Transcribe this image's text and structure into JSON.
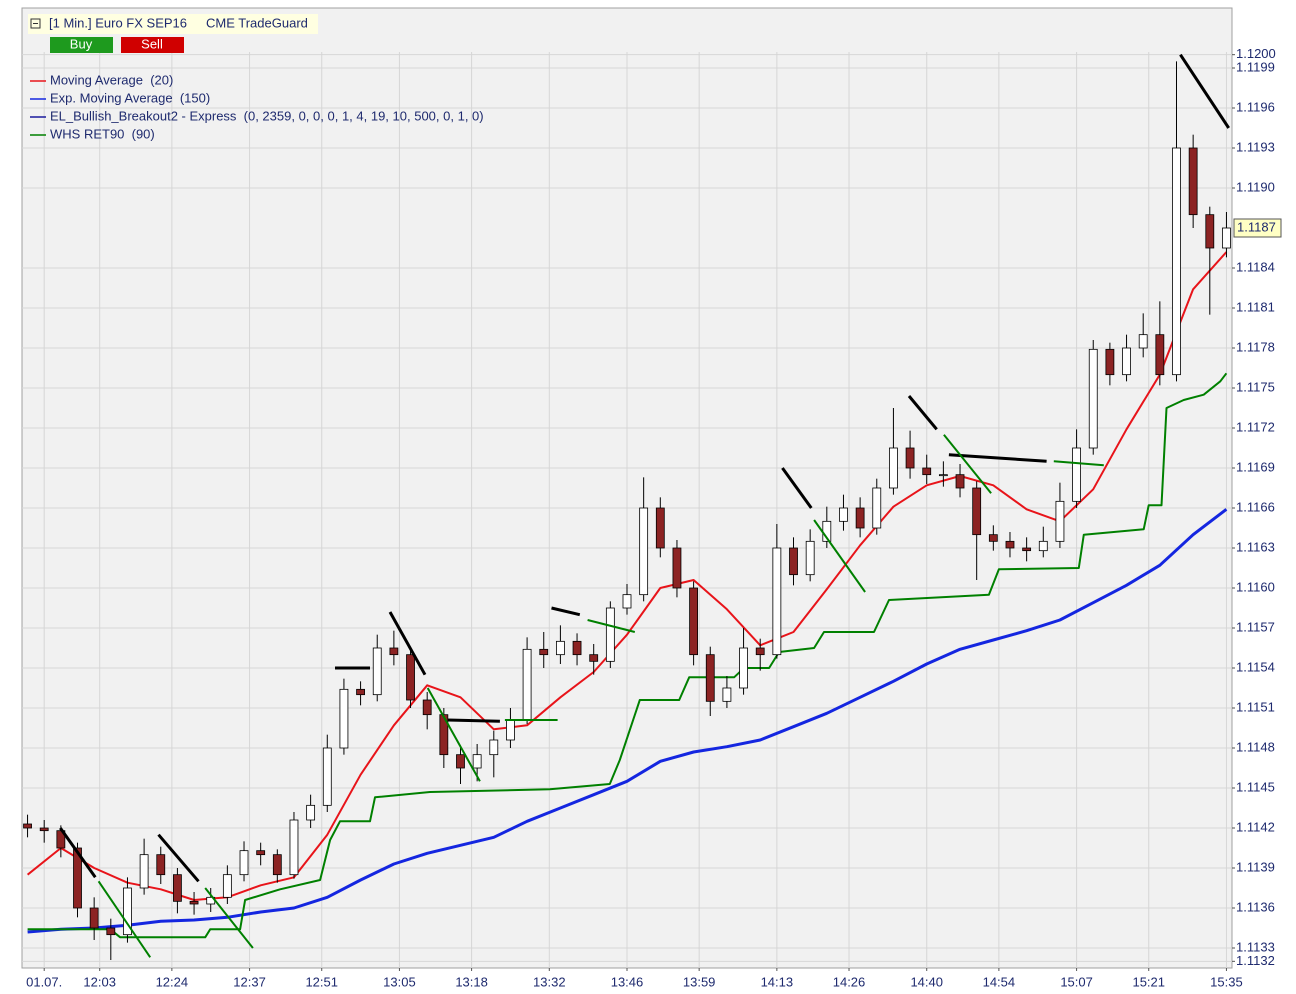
{
  "header": {
    "title": "[1 Min.] Euro FX SEP16",
    "account": "CME TradeGuard",
    "buy": "Buy",
    "sell": "Sell"
  },
  "chart_data": {
    "type": "candlestick",
    "x": [
      0,
      3,
      6,
      9,
      12,
      15,
      18,
      21,
      24,
      27,
      30,
      33,
      36,
      39,
      42,
      45,
      48,
      51,
      54,
      57,
      60,
      63,
      66,
      69,
      72,
      75,
      78,
      81,
      84,
      87,
      90,
      93,
      96,
      99,
      102,
      105,
      108,
      111,
      114,
      117,
      120,
      123,
      126,
      129,
      132,
      135,
      138,
      141,
      144,
      147,
      150,
      153,
      156,
      159,
      162,
      165,
      168,
      171,
      174,
      177,
      180,
      183,
      186,
      189,
      192,
      195,
      198,
      201,
      204,
      207,
      210,
      213,
      216
    ],
    "open": [
      1.11423,
      1.1142,
      1.11418,
      1.11405,
      1.1136,
      1.11345,
      1.1134,
      1.11375,
      1.114,
      1.11385,
      1.11365,
      1.11363,
      1.11368,
      1.11385,
      1.11403,
      1.114,
      1.11385,
      1.11426,
      1.11437,
      1.1148,
      1.11524,
      1.1152,
      1.11555,
      1.1155,
      1.11516,
      1.11505,
      1.11475,
      1.11465,
      1.11475,
      1.11486,
      1.11501,
      1.11554,
      1.1155,
      1.1156,
      1.1155,
      1.11545,
      1.11585,
      1.11595,
      1.1166,
      1.1163,
      1.116,
      1.1155,
      1.11515,
      1.11525,
      1.11555,
      1.1155,
      1.1163,
      1.1161,
      1.11635,
      1.1165,
      1.1166,
      1.11645,
      1.11675,
      1.11705,
      1.1169,
      1.11685,
      1.11685,
      1.11675,
      1.1164,
      1.11635,
      1.1163,
      1.11628,
      1.11635,
      1.11665,
      1.11705,
      1.11779,
      1.1176,
      1.1178,
      1.1179,
      1.1176,
      1.1193,
      1.1188,
      1.11855
    ],
    "high": [
      1.1143,
      1.11426,
      1.11422,
      1.11409,
      1.11368,
      1.11352,
      1.11383,
      1.11412,
      1.11406,
      1.1139,
      1.11372,
      1.11375,
      1.11392,
      1.1141,
      1.11409,
      1.11404,
      1.11432,
      1.11445,
      1.1149,
      1.11532,
      1.1153,
      1.11565,
      1.11568,
      1.11556,
      1.11522,
      1.1151,
      1.11482,
      1.11483,
      1.11493,
      1.1151,
      1.11563,
      1.11567,
      1.11572,
      1.11566,
      1.11558,
      1.1159,
      1.11603,
      1.11683,
      1.11668,
      1.11636,
      1.11605,
      1.11556,
      1.11534,
      1.1157,
      1.11562,
      1.11648,
      1.11638,
      1.11644,
      1.11661,
      1.1167,
      1.11668,
      1.11682,
      1.11735,
      1.11718,
      1.117,
      1.11695,
      1.11693,
      1.1168,
      1.11647,
      1.11642,
      1.11638,
      1.11646,
      1.11679,
      1.11719,
      1.11786,
      1.11784,
      1.1179,
      1.11806,
      1.11815,
      1.11995,
      1.1194,
      1.11886,
      1.11882
    ],
    "low": [
      1.11413,
      1.11409,
      1.11398,
      1.11353,
      1.11336,
      1.11321,
      1.11334,
      1.1137,
      1.11378,
      1.11356,
      1.11355,
      1.11357,
      1.11363,
      1.1138,
      1.11392,
      1.11379,
      1.11382,
      1.1142,
      1.11432,
      1.11475,
      1.11512,
      1.11515,
      1.11542,
      1.1151,
      1.11494,
      1.11465,
      1.11453,
      1.11455,
      1.11458,
      1.1148,
      1.11498,
      1.1154,
      1.11543,
      1.11542,
      1.11535,
      1.1154,
      1.1158,
      1.1159,
      1.11623,
      1.11593,
      1.11542,
      1.11504,
      1.1151,
      1.1152,
      1.11538,
      1.11547,
      1.11602,
      1.11605,
      1.1163,
      1.11643,
      1.11638,
      1.1164,
      1.1167,
      1.11682,
      1.11678,
      1.11676,
      1.11668,
      1.11606,
      1.11628,
      1.11623,
      1.1162,
      1.11623,
      1.1163,
      1.1166,
      1.117,
      1.11752,
      1.11755,
      1.11773,
      1.11752,
      1.11755,
      1.1187,
      1.11805,
      1.11848
    ],
    "close": [
      1.1142,
      1.11418,
      1.11405,
      1.1136,
      1.11345,
      1.1134,
      1.11375,
      1.114,
      1.11385,
      1.11365,
      1.11363,
      1.11368,
      1.11385,
      1.11403,
      1.114,
      1.11385,
      1.11426,
      1.11437,
      1.1148,
      1.11524,
      1.1152,
      1.11555,
      1.1155,
      1.11516,
      1.11505,
      1.11475,
      1.11465,
      1.11475,
      1.11486,
      1.11501,
      1.11554,
      1.1155,
      1.1156,
      1.1155,
      1.11545,
      1.11585,
      1.11595,
      1.1166,
      1.1163,
      1.116,
      1.1155,
      1.11515,
      1.11525,
      1.11555,
      1.1155,
      1.1163,
      1.1161,
      1.11635,
      1.1165,
      1.1166,
      1.11645,
      1.11675,
      1.11705,
      1.1169,
      1.11685,
      1.11685,
      1.11675,
      1.1164,
      1.11635,
      1.1163,
      1.11628,
      1.11635,
      1.11665,
      1.11705,
      1.11779,
      1.1176,
      1.1178,
      1.1179,
      1.1176,
      1.1193,
      1.1188,
      1.11855,
      1.1187
    ],
    "up_color": "#ffffff",
    "down_color": "#8c2323",
    "series": [
      {
        "name": "Moving Average  (20)",
        "color": "#e8141a",
        "x": [
          0,
          6,
          12,
          18,
          24,
          30,
          36,
          42,
          48,
          54,
          60,
          66,
          72,
          78,
          84,
          90,
          96,
          102,
          108,
          114,
          120,
          126,
          132,
          138,
          144,
          150,
          156,
          162,
          168,
          174,
          180,
          186,
          192,
          198,
          204,
          210,
          216
        ],
        "values": [
          1.11385,
          1.11405,
          1.1139,
          1.11379,
          1.11374,
          1.11366,
          1.11368,
          1.11377,
          1.11383,
          1.11415,
          1.1146,
          1.11497,
          1.11527,
          1.11518,
          1.11494,
          1.11497,
          1.11518,
          1.11537,
          1.11565,
          1.116,
          1.11606,
          1.11584,
          1.11557,
          1.11567,
          1.11599,
          1.11632,
          1.11661,
          1.11677,
          1.11684,
          1.11677,
          1.11659,
          1.1165,
          1.11674,
          1.11719,
          1.1176,
          1.11824,
          1.11852
        ]
      },
      {
        "name": "Exp. Moving Average  (150)",
        "color": "#1426e0",
        "x": [
          0,
          6,
          12,
          18,
          24,
          30,
          36,
          42,
          48,
          54,
          60,
          66,
          72,
          78,
          84,
          90,
          96,
          102,
          108,
          114,
          120,
          126,
          132,
          138,
          144,
          150,
          156,
          162,
          168,
          174,
          180,
          186,
          192,
          198,
          204,
          210,
          216
        ],
        "values": [
          1.11342,
          1.11344,
          1.11345,
          1.11347,
          1.1135,
          1.11351,
          1.11353,
          1.11357,
          1.1136,
          1.11368,
          1.11381,
          1.11393,
          1.11401,
          1.11407,
          1.11413,
          1.11425,
          1.11435,
          1.11445,
          1.11455,
          1.1147,
          1.11477,
          1.11481,
          1.11486,
          1.11496,
          1.11506,
          1.11518,
          1.1153,
          1.11543,
          1.11554,
          1.11561,
          1.11568,
          1.11576,
          1.11589,
          1.11602,
          1.11617,
          1.1164,
          1.11659
        ]
      },
      {
        "name": "EL_Bullish_Breakout2 - Express  (0, 2359, 0, 0, 0, 1, 4, 19, 10, 500, 0, 1, 0)",
        "color": "#1a1a9c",
        "segments": [
          {
            "color": "#000000",
            "x": [
              5.9,
              12.2
            ],
            "values": [
              1.1142,
              1.11383
            ]
          },
          {
            "color": "#000000",
            "x": [
              23.6,
              30.8
            ],
            "values": [
              1.11415,
              1.1138
            ]
          },
          {
            "color": "#000000",
            "x": [
              55.4,
              61.7
            ],
            "values": [
              1.1154,
              1.1154
            ]
          },
          {
            "color": "#000000",
            "x": [
              65.3,
              71.6
            ],
            "values": [
              1.11582,
              1.11535
            ]
          },
          {
            "color": "#000000",
            "x": [
              75.7,
              85.1
            ],
            "values": [
              1.11501,
              1.115
            ]
          },
          {
            "color": "#000000",
            "x": [
              94.4,
              99.5
            ],
            "values": [
              1.11585,
              1.1158
            ]
          },
          {
            "color": "#000000",
            "x": [
              136.0,
              141.2
            ],
            "values": [
              1.1169,
              1.1166
            ]
          },
          {
            "color": "#000000",
            "x": [
              158.8,
              163.8
            ],
            "values": [
              1.11744,
              1.11719
            ]
          },
          {
            "color": "#000000",
            "x": [
              166.0,
              183.6
            ],
            "values": [
              1.117,
              1.11695
            ]
          },
          {
            "color": "#000000",
            "x": [
              207.7,
              216.4
            ],
            "values": [
              1.12,
              1.11945
            ]
          },
          {
            "color": "#008000",
            "x": [
              12.8,
              22.1
            ],
            "values": [
              1.1138,
              1.11323
            ]
          },
          {
            "color": "#008000",
            "x": [
              32.0,
              40.6
            ],
            "values": [
              1.11375,
              1.1133
            ]
          },
          {
            "color": "#008000",
            "x": [
              72.1,
              81.5
            ],
            "values": [
              1.11525,
              1.11455
            ]
          },
          {
            "color": "#008000",
            "x": [
              86.0,
              95.5
            ],
            "values": [
              1.11501,
              1.11501
            ]
          },
          {
            "color": "#008000",
            "x": [
              100.9,
              109.4
            ],
            "values": [
              1.11576,
              1.11567
            ]
          },
          {
            "color": "#008000",
            "x": [
              141.7,
              150.9
            ],
            "values": [
              1.11651,
              1.11597
            ]
          },
          {
            "color": "#008000",
            "x": [
              165.1,
              173.6
            ],
            "values": [
              1.11715,
              1.11671
            ]
          },
          {
            "color": "#008000",
            "x": [
              184.9,
              193.9
            ],
            "values": [
              1.11695,
              1.11692
            ]
          }
        ]
      },
      {
        "name": "WHS RET90  (90)",
        "color": "#008000",
        "x": [
          0,
          14.9,
          16.7,
          32.0,
          32.9,
          38.3,
          39.2,
          45.5,
          52.7,
          54.5,
          56.3,
          61.7,
          62.6,
          72.5,
          94.1,
          104.9,
          106.7,
          110.3,
          117.4,
          119.2,
          127.3,
          129.1,
          133.6,
          135.4,
          141.7,
          143.5,
          152.5,
          155.2,
          173.2,
          175.0,
          189.4,
          190.3,
          201.1,
          202.0,
          204.3,
          205.2,
          208.3,
          211.9,
          214.9,
          216.0
        ],
        "values": [
          1.11344,
          1.11344,
          1.11338,
          1.11338,
          1.11344,
          1.11344,
          1.11366,
          1.11374,
          1.11381,
          1.11411,
          1.11425,
          1.11425,
          1.11443,
          1.11447,
          1.11449,
          1.11453,
          1.11471,
          1.11516,
          1.11516,
          1.11533,
          1.11533,
          1.1154,
          1.1154,
          1.11552,
          1.11555,
          1.11567,
          1.11567,
          1.11591,
          1.11595,
          1.11614,
          1.11615,
          1.1164,
          1.11644,
          1.11662,
          1.11662,
          1.11735,
          1.11741,
          1.11745,
          1.11755,
          1.11761
        ]
      }
    ],
    "last_price": 1.1187,
    "xlim": [
      -1,
      217
    ],
    "xticks": [
      {
        "value": 3,
        "label": "01.07."
      },
      {
        "value": 13,
        "label": "12:03"
      },
      {
        "value": 26,
        "label": "12:24"
      },
      {
        "value": 40,
        "label": "12:37"
      },
      {
        "value": 53,
        "label": "12:51"
      },
      {
        "value": 67,
        "label": "13:05"
      },
      {
        "value": 80,
        "label": "13:18"
      },
      {
        "value": 94,
        "label": "13:32"
      },
      {
        "value": 108,
        "label": "13:46"
      },
      {
        "value": 121,
        "label": "13:59"
      },
      {
        "value": 135,
        "label": "14:13"
      },
      {
        "value": 148,
        "label": "14:26"
      },
      {
        "value": 162,
        "label": "14:40"
      },
      {
        "value": 175,
        "label": "14:54"
      },
      {
        "value": 189,
        "label": "15:07"
      },
      {
        "value": 202,
        "label": "15:21"
      },
      {
        "value": 216,
        "label": "15:35"
      }
    ],
    "ylim": [
      1.11315,
      1.12002
    ],
    "yticks": [
      1.1132,
      1.1133,
      1.1136,
      1.1139,
      1.1142,
      1.1145,
      1.1148,
      1.1151,
      1.1154,
      1.1157,
      {
        "value": 1.116,
        "label": "1.1160"
      },
      1.1163,
      1.1166,
      1.1169,
      1.1172,
      1.1175,
      1.1178,
      1.1181,
      1.1184,
      {
        "value": 1.119,
        "label": "1.1190"
      },
      1.1193,
      1.1196,
      1.1199,
      {
        "value": 1.12,
        "label": "1.1200"
      }
    ],
    "grid": true
  }
}
